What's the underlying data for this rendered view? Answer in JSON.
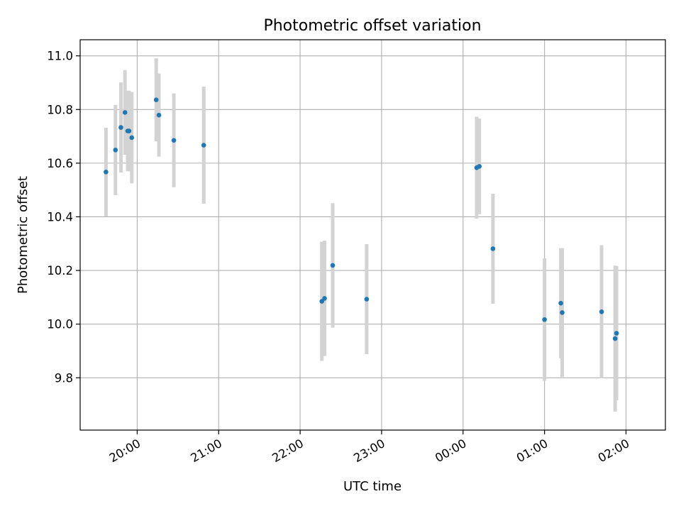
{
  "chart_data": {
    "type": "scatter",
    "title": "Photometric offset variation",
    "xlabel": "UTC time",
    "ylabel": "Photometric offset",
    "x_axis": "time",
    "xlim": [
      "19:18",
      "02:29"
    ],
    "ylim": [
      9.605,
      11.06
    ],
    "xticks": [
      {
        "time": "20:00",
        "label": "20:00"
      },
      {
        "time": "21:00",
        "label": "21:00"
      },
      {
        "time": "22:00",
        "label": "22:00"
      },
      {
        "time": "23:00",
        "label": "23:00"
      },
      {
        "time": "00:00",
        "label": "00:00"
      },
      {
        "time": "01:00",
        "label": "01:00"
      },
      {
        "time": "02:00",
        "label": "02:00"
      }
    ],
    "yticks": [
      9.8,
      10.0,
      10.2,
      10.4,
      10.6,
      10.8,
      11.0
    ],
    "ytick_labels": [
      "9.8",
      "10.0",
      "10.2",
      "10.4",
      "10.6",
      "10.8",
      "11.0"
    ],
    "grid": true,
    "series": [
      {
        "color": "#1f77b4",
        "errorbar_color": "#d3d3d3",
        "points": [
          {
            "x": "19:37",
            "y": 10.567,
            "yerr": 0.165
          },
          {
            "x": "19:44",
            "y": 10.649,
            "yerr": 0.168
          },
          {
            "x": "19:48",
            "y": 10.733,
            "yerr": 0.168
          },
          {
            "x": "19:51",
            "y": 10.789,
            "yerr": 0.158
          },
          {
            "x": "19:53",
            "y": 10.72,
            "yerr": 0.15
          },
          {
            "x": "19:54",
            "y": 10.72,
            "yerr": 0.15
          },
          {
            "x": "19:56",
            "y": 10.695,
            "yerr": 0.17
          },
          {
            "x": "20:14",
            "y": 10.836,
            "yerr": 0.155
          },
          {
            "x": "20:16",
            "y": 10.779,
            "yerr": 0.155
          },
          {
            "x": "20:27",
            "y": 10.685,
            "yerr": 0.175
          },
          {
            "x": "20:49",
            "y": 10.667,
            "yerr": 0.218
          },
          {
            "x": "22:16",
            "y": 10.085,
            "yerr": 0.222
          },
          {
            "x": "22:18",
            "y": 10.096,
            "yerr": 0.215
          },
          {
            "x": "22:24",
            "y": 10.219,
            "yerr": 0.232
          },
          {
            "x": "22:49",
            "y": 10.093,
            "yerr": 0.205
          },
          {
            "x": "00:10",
            "y": 10.583,
            "yerr": 0.19
          },
          {
            "x": "00:12",
            "y": 10.588,
            "yerr": 0.178
          },
          {
            "x": "00:22",
            "y": 10.281,
            "yerr": 0.205
          },
          {
            "x": "01:00",
            "y": 10.017,
            "yerr": 0.228
          },
          {
            "x": "01:12",
            "y": 10.078,
            "yerr": 0.205
          },
          {
            "x": "01:13",
            "y": 10.043,
            "yerr": 0.24
          },
          {
            "x": "01:42",
            "y": 10.046,
            "yerr": 0.248
          },
          {
            "x": "01:52",
            "y": 9.946,
            "yerr": 0.272
          },
          {
            "x": "01:53",
            "y": 9.966,
            "yerr": 0.25
          }
        ]
      }
    ]
  }
}
